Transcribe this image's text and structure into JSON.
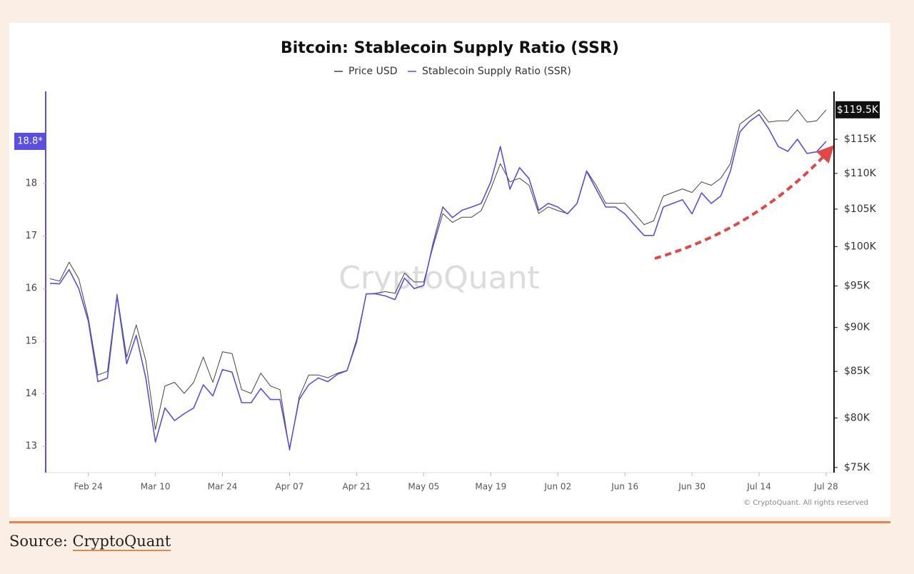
{
  "chart_data": {
    "type": "line",
    "title": "Bitcoin: Stablecoin Supply Ratio (SSR)",
    "watermark": "CryptoQuant",
    "credit": "© CryptoQuant. All rights reserved",
    "x": [
      "Feb 16",
      "Feb 18",
      "Feb 20",
      "Feb 22",
      "Feb 24",
      "Feb 26",
      "Feb 28",
      "Mar 02",
      "Mar 04",
      "Mar 06",
      "Mar 08",
      "Mar 10",
      "Mar 12",
      "Mar 14",
      "Mar 16",
      "Mar 18",
      "Mar 20",
      "Mar 22",
      "Mar 24",
      "Mar 26",
      "Mar 28",
      "Mar 30",
      "Apr 01",
      "Apr 03",
      "Apr 05",
      "Apr 07",
      "Apr 09",
      "Apr 11",
      "Apr 13",
      "Apr 15",
      "Apr 17",
      "Apr 19",
      "Apr 21",
      "Apr 23",
      "Apr 25",
      "Apr 27",
      "Apr 29",
      "May 01",
      "May 03",
      "May 05",
      "May 07",
      "May 09",
      "May 11",
      "May 13",
      "May 15",
      "May 17",
      "May 19",
      "May 21",
      "May 23",
      "May 25",
      "May 27",
      "May 29",
      "May 31",
      "Jun 02",
      "Jun 04",
      "Jun 06",
      "Jun 08",
      "Jun 10",
      "Jun 12",
      "Jun 14",
      "Jun 16",
      "Jun 18",
      "Jun 20",
      "Jun 22",
      "Jun 24",
      "Jun 26",
      "Jun 28",
      "Jun 30",
      "Jul 02",
      "Jul 04",
      "Jul 06",
      "Jul 08",
      "Jul 10",
      "Jul 12",
      "Jul 14",
      "Jul 16",
      "Jul 18",
      "Jul 20",
      "Jul 22",
      "Jul 24",
      "Jul 26",
      "Jul 28"
    ],
    "xticks": [
      "Feb 24",
      "Mar 10",
      "Mar 24",
      "Apr 07",
      "Apr 21",
      "May 05",
      "May 19",
      "Jun 02",
      "Jun 16",
      "Jun 30",
      "Jul 14",
      "Jul 28"
    ],
    "series": [
      {
        "name": "Price USD",
        "color": "#444444",
        "axis": "y2",
        "end_label": "$119.5K",
        "values": [
          95900,
          95600,
          98000,
          95900,
          91100,
          84600,
          85000,
          94000,
          86600,
          90300,
          86200,
          78800,
          83400,
          83800,
          82600,
          83800,
          86600,
          83800,
          87200,
          87000,
          83000,
          82600,
          84800,
          83400,
          83000,
          76700,
          82200,
          84600,
          84600,
          84300,
          84800,
          85100,
          88600,
          94000,
          94100,
          94300,
          94100,
          96600,
          95500,
          95500,
          100100,
          104400,
          103200,
          103900,
          103900,
          104800,
          107800,
          111400,
          108800,
          109300,
          108300,
          104400,
          105300,
          104800,
          104400,
          105800,
          110400,
          108300,
          105800,
          105800,
          105800,
          104400,
          102900,
          103400,
          106800,
          107300,
          107800,
          107300,
          108800,
          108300,
          109300,
          111400,
          117300,
          118400,
          119500,
          117600,
          117800,
          117800,
          119500,
          117600,
          117800,
          119500
        ]
      },
      {
        "name": "Stablecoin Supply Ratio (SSR)",
        "color": "#5b4fe0",
        "axis": "y",
        "end_label": "18.8*",
        "values": [
          16.1,
          16.09,
          16.36,
          16.0,
          15.38,
          14.23,
          14.3,
          15.86,
          14.57,
          15.11,
          14.3,
          13.08,
          13.73,
          13.49,
          13.62,
          13.73,
          14.17,
          13.96,
          14.46,
          14.41,
          13.83,
          13.83,
          14.1,
          13.89,
          13.89,
          12.95,
          13.89,
          14.17,
          14.3,
          14.23,
          14.37,
          14.44,
          14.98,
          15.9,
          15.9,
          15.86,
          15.79,
          16.2,
          16.0,
          16.06,
          16.88,
          17.55,
          17.35,
          17.49,
          17.55,
          17.62,
          18.03,
          18.7,
          17.89,
          18.3,
          18.09,
          17.49,
          17.62,
          17.55,
          17.42,
          17.62,
          18.23,
          17.89,
          17.55,
          17.55,
          17.42,
          17.21,
          17.01,
          17.01,
          17.55,
          17.62,
          17.69,
          17.42,
          17.82,
          17.62,
          17.76,
          18.23,
          18.98,
          19.18,
          19.31,
          19.04,
          18.7,
          18.61,
          18.84,
          18.57,
          18.6,
          18.8
        ]
      }
    ],
    "ylim": [
      12.5,
      19.75
    ],
    "yticks": [
      13,
      14,
      15,
      16,
      17,
      18
    ],
    "y2lim": [
      74500,
      122400
    ],
    "y2scale": "log",
    "y2ticks": [
      {
        "value": 75000,
        "label": "$75K"
      },
      {
        "value": 80000,
        "label": "$80K"
      },
      {
        "value": 85000,
        "label": "$85K"
      },
      {
        "value": 90000,
        "label": "$90K"
      },
      {
        "value": 95000,
        "label": "$95K"
      },
      {
        "value": 100000,
        "label": "$100K"
      },
      {
        "value": 105000,
        "label": "$105K"
      },
      {
        "value": 110000,
        "label": "$110K"
      },
      {
        "value": 115000,
        "label": "$115K"
      }
    ],
    "legend": "top"
  },
  "source": {
    "label": "Source:",
    "link": "CryptoQuant"
  }
}
